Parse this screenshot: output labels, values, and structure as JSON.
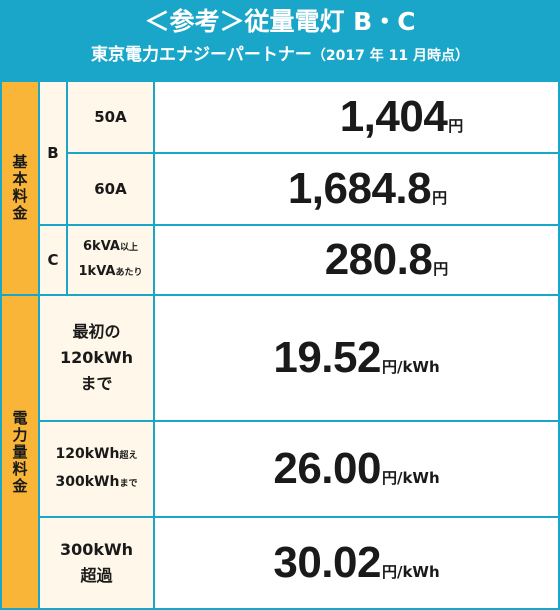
{
  "header": {
    "title": "＜参考＞従量電灯 B・C",
    "subtitle": "東京電力エナジーパートナー",
    "note": "（2017 年 11 月時点）"
  },
  "sections": {
    "basic_fee": [
      "基",
      "本",
      "料",
      "金"
    ],
    "energy_fee": [
      "電",
      "力",
      "量",
      "料",
      "金"
    ]
  },
  "plans": {
    "b": "B",
    "c": "C"
  },
  "basic_rows": [
    {
      "label": "50A",
      "price": "1,404",
      "yen": "円"
    },
    {
      "label": "60A",
      "price": "1,684.8",
      "yen": "円"
    }
  ],
  "c_row": {
    "line1": "6kVA",
    "line1_suffix": "以上",
    "line2": "1kVA",
    "line2_suffix": "あたり",
    "price": "280.8",
    "yen": "円"
  },
  "energy_rows": [
    {
      "label_lines": [
        "最初の",
        "120kWh",
        "まで"
      ],
      "price": "19.52",
      "yen": "円",
      "unit": "/kWh"
    },
    {
      "line1": "120kWh",
      "line1_suffix": "超え",
      "line2": "300kWh",
      "line2_suffix": "まで",
      "price": "26.00",
      "yen": "円",
      "unit": "/kWh"
    },
    {
      "label_lines": [
        "300kWh",
        "超過"
      ],
      "price": "30.02",
      "yen": "円",
      "unit": "/kWh"
    }
  ]
}
